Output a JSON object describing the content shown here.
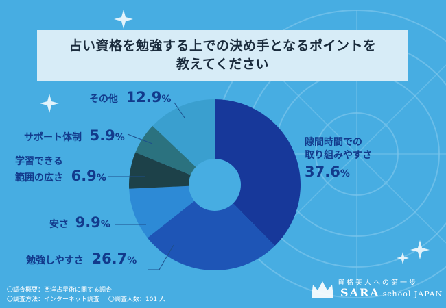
{
  "title": {
    "line1": "占い資格を勉強する上での決め手となるポイントを",
    "line2": "教えてください"
  },
  "colors": {
    "background": "#47ade2",
    "title_box": "#d7ecf7",
    "label_text": "#123a8c"
  },
  "chart_data": {
    "type": "pie",
    "title": "占い資格を勉強する上での決め手となるポイントを教えてください",
    "categories": [
      "隙間時間での取り組みやすさ",
      "勉強しやすさ",
      "安さ",
      "学習できる範囲の広さ",
      "サポート体制",
      "その他"
    ],
    "values": [
      37.6,
      26.7,
      9.9,
      6.9,
      5.9,
      12.9
    ],
    "unit": "%",
    "colors": [
      "#17389a",
      "#1e55b6",
      "#2d8ad6",
      "#1d4149",
      "#2b727f",
      "#3a9fcf"
    ],
    "donut": true,
    "start_angle_deg": 0,
    "direction": "clockwise"
  },
  "labels": [
    {
      "text_lines": [
        "隙間時間での",
        "取り組みやすさ"
      ],
      "num": "37.6",
      "sign": "%"
    },
    {
      "text_lines": [
        "勉強しやすさ"
      ],
      "num": "26.7",
      "sign": "%"
    },
    {
      "text_lines": [
        "安さ"
      ],
      "num": "9.9",
      "sign": "%"
    },
    {
      "text_lines": [
        "学習できる",
        "範囲の広さ"
      ],
      "num": "6.9",
      "sign": "%"
    },
    {
      "text_lines": [
        "サポート体制"
      ],
      "num": "5.9",
      "sign": "%"
    },
    {
      "text_lines": [
        "その他"
      ],
      "num": "12.9",
      "sign": "%"
    }
  ],
  "footer": {
    "line1": "〇調査概要：西洋占星術に関する調査",
    "line2a": "〇調査方法：インターネット調査",
    "line2b": "〇調査人数：101 人"
  },
  "logo": {
    "tagline": "資格美人への第一歩",
    "brand_main": "SARA",
    "brand_rest": "school JAPAN",
    "icon": "crown-icon"
  }
}
